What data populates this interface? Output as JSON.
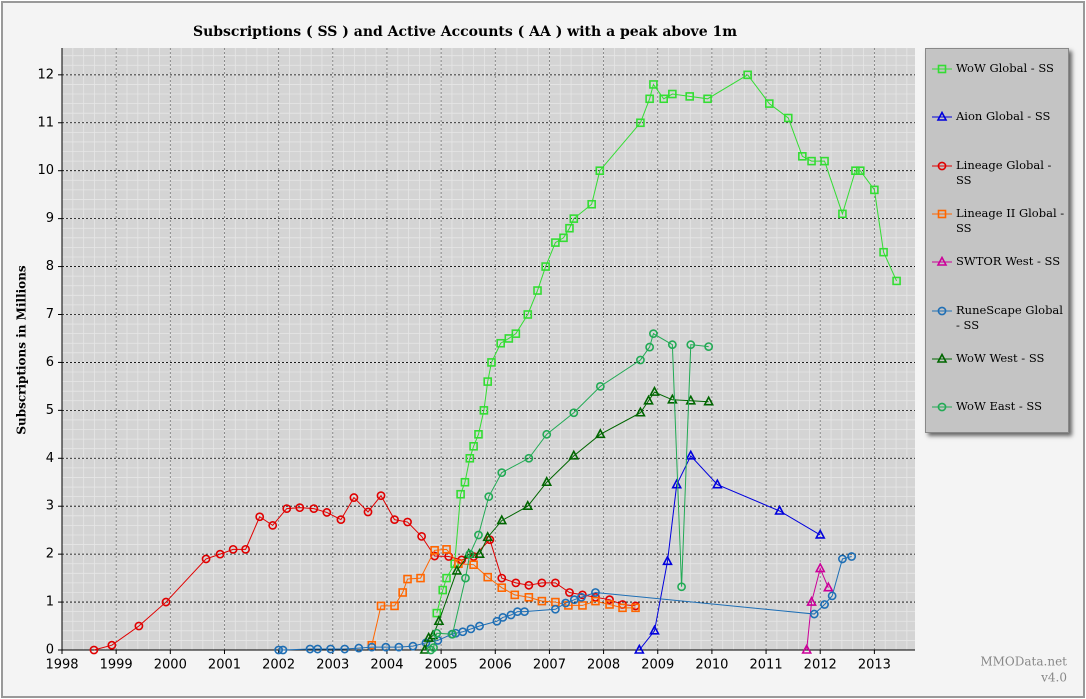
{
  "chart_data": {
    "type": "line",
    "title": "Subscriptions ( SS ) and Active Accounts ( AA ) with a peak above 1m",
    "y_label": "Subscriptions in Millions",
    "watermark": "MMOData.net",
    "version": "v4.0",
    "xlim": [
      1998,
      2013.75
    ],
    "xticks": [
      1998,
      1999,
      2000,
      2001,
      2002,
      2003,
      2004,
      2005,
      2006,
      2007,
      2008,
      2009,
      2010,
      2011,
      2012,
      2013
    ],
    "ylim": [
      0,
      12.56
    ],
    "yticks": [
      0,
      1,
      2,
      3,
      4,
      5,
      6,
      7,
      8,
      9,
      10,
      11,
      12
    ],
    "grid": true,
    "legend": "right",
    "series": [
      {
        "name": "WoW Global - SS",
        "color": "#33dd33",
        "marker": "square",
        "x": [
          2004.92,
          2005.03,
          2005.1,
          2005.25,
          2005.36,
          2005.44,
          2005.53,
          2005.6,
          2005.69,
          2005.79,
          2005.86,
          2005.93,
          2006.1,
          2006.25,
          2006.38,
          2006.6,
          2006.78,
          2006.93,
          2007.11,
          2007.26,
          2007.37,
          2007.45,
          2007.78,
          2007.93,
          2008.68,
          2008.85,
          2008.92,
          2009.11,
          2009.27,
          2009.59,
          2009.92,
          2010.66,
          2011.06,
          2011.41,
          2011.67,
          2011.84,
          2012.08,
          2012.41,
          2012.65,
          2012.74,
          2013.0,
          2013.17,
          2013.41
        ],
        "values": [
          0.77,
          1.25,
          1.5,
          1.8,
          3.25,
          3.5,
          4.0,
          4.25,
          4.5,
          5.0,
          5.6,
          6.0,
          6.4,
          6.5,
          6.6,
          7.0,
          7.5,
          8.0,
          8.5,
          8.6,
          8.8,
          9.0,
          9.3,
          10.0,
          11.0,
          11.5,
          11.8,
          11.5,
          11.6,
          11.55,
          11.5,
          12.0,
          11.4,
          11.1,
          10.3,
          10.2,
          10.2,
          9.1,
          10.0,
          10.0,
          9.6,
          8.3,
          7.7
        ]
      },
      {
        "name": "Aion Global - SS",
        "color": "#0000dd",
        "marker": "triangle",
        "x": [
          2008.66,
          2008.94,
          2009.18,
          2009.35,
          2009.61,
          2010.1,
          2011.25,
          2012.0
        ],
        "values": [
          0,
          0.4,
          1.85,
          3.45,
          4.05,
          3.45,
          2.9,
          2.4
        ]
      },
      {
        "name": "Lineage Global - SS",
        "color": "#e00000",
        "marker": "circle",
        "x": [
          1998.59,
          1998.92,
          1999.42,
          1999.92,
          2000.66,
          2000.92,
          2001.16,
          2001.39,
          2001.65,
          2001.89,
          2002.15,
          2002.39,
          2002.65,
          2002.89,
          2003.15,
          2003.39,
          2003.65,
          2003.89,
          2004.14,
          2004.38,
          2004.64,
          2004.88,
          2005.14,
          2005.38,
          2005.6,
          2005.9,
          2006.12,
          2006.38,
          2006.62,
          2006.86,
          2007.11,
          2007.37,
          2007.61,
          2007.85,
          2008.11,
          2008.35,
          2008.59
        ],
        "values": [
          0,
          0.1,
          0.5,
          1.0,
          1.9,
          2.0,
          2.1,
          2.1,
          2.78,
          2.6,
          2.95,
          2.97,
          2.95,
          2.87,
          2.72,
          3.18,
          2.88,
          3.22,
          2.72,
          2.67,
          2.37,
          1.96,
          1.95,
          1.88,
          1.95,
          2.3,
          1.5,
          1.4,
          1.35,
          1.4,
          1.4,
          1.2,
          1.15,
          1.1,
          1.05,
          0.95,
          0.92
        ]
      },
      {
        "name": "Lineage II Global - SS",
        "color": "#ff6600",
        "marker": "square",
        "x": [
          2003.72,
          2003.89,
          2004.14,
          2004.29,
          2004.38,
          2004.62,
          2004.88,
          2005.1,
          2005.32,
          2005.6,
          2005.86,
          2006.12,
          2006.36,
          2006.62,
          2006.86,
          2007.11,
          2007.35,
          2007.61,
          2007.85,
          2008.11,
          2008.35,
          2008.59
        ],
        "values": [
          0.1,
          0.92,
          0.92,
          1.2,
          1.48,
          1.5,
          2.08,
          2.1,
          1.8,
          1.78,
          1.52,
          1.3,
          1.15,
          1.1,
          1.02,
          1.0,
          0.93,
          0.93,
          1.02,
          0.95,
          0.88,
          0.88
        ]
      },
      {
        "name": "SWTOR West - SS",
        "color": "#cc0099",
        "marker": "triangle",
        "x": [
          2011.75,
          2011.84,
          2012.0,
          2012.15
        ],
        "values": [
          0,
          1.0,
          1.7,
          1.3
        ]
      },
      {
        "name": "RuneScape Global - SS",
        "color": "#1f6fb5",
        "marker": "circle",
        "x": [
          2002.0,
          2002.08,
          2002.58,
          2002.72,
          2002.96,
          2003.22,
          2003.48,
          2003.72,
          2003.98,
          2004.22,
          2004.48,
          2004.72,
          2004.94,
          2005.2,
          2005.27,
          2005.4,
          2005.55,
          2005.71,
          2006.03,
          2006.14,
          2006.29,
          2006.41,
          2006.54,
          2007.11,
          2007.3,
          2007.46,
          2007.59,
          2007.85,
          2011.89,
          2012.08,
          2012.22,
          2012.41,
          2012.58
        ],
        "values": [
          0,
          0,
          0.02,
          0.02,
          0.02,
          0.02,
          0.04,
          0.06,
          0.06,
          0.06,
          0.08,
          0.15,
          0.2,
          0.33,
          0.35,
          0.38,
          0.44,
          0.5,
          0.6,
          0.68,
          0.73,
          0.8,
          0.8,
          0.85,
          0.98,
          1.05,
          1.1,
          1.2,
          0.75,
          0.95,
          1.13,
          1.9,
          1.95
        ]
      },
      {
        "name": "WoW West - SS",
        "color": "#006600",
        "marker": "triangle",
        "x": [
          2004.7,
          2004.77,
          2004.85,
          2004.96,
          2005.29,
          2005.51,
          2005.71,
          2005.86,
          2006.12,
          2006.6,
          2006.95,
          2007.45,
          2007.94,
          2008.68,
          2008.83,
          2008.94,
          2009.27,
          2009.61,
          2009.94
        ],
        "values": [
          0,
          0.25,
          0.3,
          0.6,
          1.65,
          2.0,
          2.0,
          2.35,
          2.7,
          3.0,
          3.5,
          4.05,
          4.5,
          4.95,
          5.2,
          5.38,
          5.22,
          5.2,
          5.18
        ]
      },
      {
        "name": "WoW East - SS",
        "color": "#22aa55",
        "marker": "circle",
        "x": [
          2004.81,
          2004.86,
          2004.92,
          2005.21,
          2005.45,
          2005.53,
          2005.69,
          2005.88,
          2006.12,
          2006.62,
          2006.95,
          2007.45,
          2007.94,
          2008.68,
          2008.85,
          2008.92,
          2009.27,
          2009.44,
          2009.61,
          2009.94
        ],
        "values": [
          0,
          0.05,
          0.35,
          0.33,
          1.5,
          2.0,
          2.4,
          3.2,
          3.7,
          4.0,
          4.5,
          4.95,
          5.5,
          6.05,
          6.32,
          6.6,
          6.37,
          1.32,
          6.37,
          6.33
        ]
      }
    ]
  }
}
